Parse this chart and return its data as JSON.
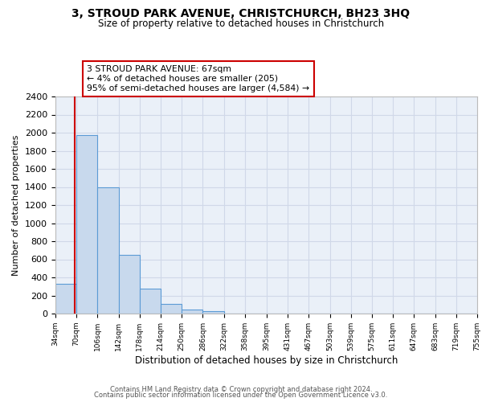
{
  "title": "3, STROUD PARK AVENUE, CHRISTCHURCH, BH23 3HQ",
  "subtitle": "Size of property relative to detached houses in Christchurch",
  "xlabel": "Distribution of detached houses by size in Christchurch",
  "ylabel": "Number of detached properties",
  "bin_edges": [
    34,
    70,
    106,
    142,
    178,
    214,
    250,
    286,
    322,
    358,
    395,
    431,
    467,
    503,
    539,
    575,
    611,
    647,
    683,
    719,
    755
  ],
  "bin_heights": [
    325,
    1975,
    1400,
    650,
    275,
    105,
    45,
    25,
    0,
    0,
    0,
    0,
    0,
    0,
    0,
    0,
    0,
    0,
    0,
    0
  ],
  "bar_color": "#c8d9ed",
  "bar_edge_color": "#5b9bd5",
  "property_line_x": 67,
  "property_line_color": "#cc0000",
  "annotation_text": "3 STROUD PARK AVENUE: 67sqm\n← 4% of detached houses are smaller (205)\n95% of semi-detached houses are larger (4,584) →",
  "annotation_box_color": "#cc0000",
  "ylim": [
    0,
    2400
  ],
  "yticks": [
    0,
    200,
    400,
    600,
    800,
    1000,
    1200,
    1400,
    1600,
    1800,
    2000,
    2200,
    2400
  ],
  "xtick_labels": [
    "34sqm",
    "70sqm",
    "106sqm",
    "142sqm",
    "178sqm",
    "214sqm",
    "250sqm",
    "286sqm",
    "322sqm",
    "358sqm",
    "395sqm",
    "431sqm",
    "467sqm",
    "503sqm",
    "539sqm",
    "575sqm",
    "611sqm",
    "647sqm",
    "683sqm",
    "719sqm",
    "755sqm"
  ],
  "grid_color": "#d0d8e8",
  "background_color": "#eaf0f8",
  "footer_line1": "Contains HM Land Registry data © Crown copyright and database right 2024.",
  "footer_line2": "Contains public sector information licensed under the Open Government Licence v3.0."
}
